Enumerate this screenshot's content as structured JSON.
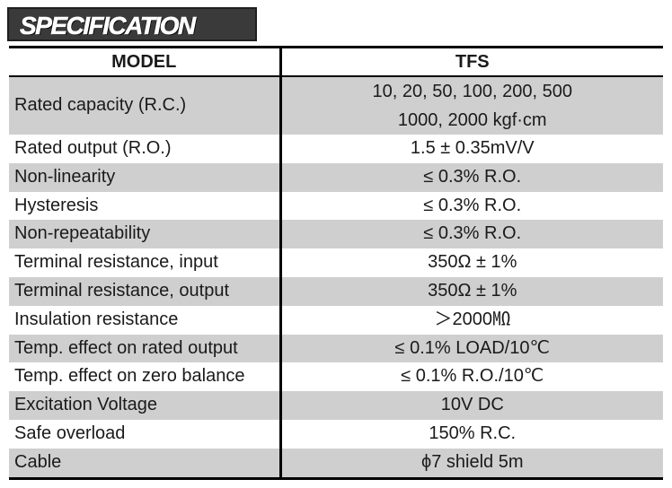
{
  "banner": {
    "title": "SPECIFICATION"
  },
  "table": {
    "header": {
      "model_label": "MODEL",
      "model_value": "TFS"
    },
    "rows": [
      {
        "label": "Rated capacity (R.C.)",
        "value_line1": "10, 20, 50, 100, 200, 500",
        "value_line2": "1000, 2000 kgf·cm",
        "shaded": true
      },
      {
        "label": "Rated output (R.O.)",
        "value": "1.5 ± 0.35mV/V",
        "shaded": false
      },
      {
        "label": "Non-linearity",
        "value": "≤ 0.3% R.O.",
        "shaded": true
      },
      {
        "label": "Hysteresis",
        "value": "≤ 0.3% R.O.",
        "shaded": false
      },
      {
        "label": "Non-repeatability",
        "value": "≤ 0.3% R.O.",
        "shaded": true
      },
      {
        "label": "Terminal resistance, input",
        "value": "350Ω ± 1%",
        "shaded": false
      },
      {
        "label": "Terminal resistance, output",
        "value": "350Ω ± 1%",
        "shaded": true
      },
      {
        "label": "Insulation resistance",
        "value": "＞2000㏁",
        "shaded": false
      },
      {
        "label": "Temp. effect on rated output",
        "value": "≤ 0.1% LOAD/10℃",
        "shaded": true
      },
      {
        "label": "Temp. effect on zero balance",
        "value": "≤ 0.1% R.O./10℃",
        "shaded": false
      },
      {
        "label": "Excitation Voltage",
        "value": "10V DC",
        "shaded": true
      },
      {
        "label": "Safe overload",
        "value": "150% R.C.",
        "shaded": false
      },
      {
        "label": "Cable",
        "value": "ϕ7 shield 5m",
        "shaded": true
      }
    ]
  },
  "colors": {
    "shade": "#cfcfcf",
    "banner_bg": "#3a3a3a",
    "rule": "#000000"
  }
}
